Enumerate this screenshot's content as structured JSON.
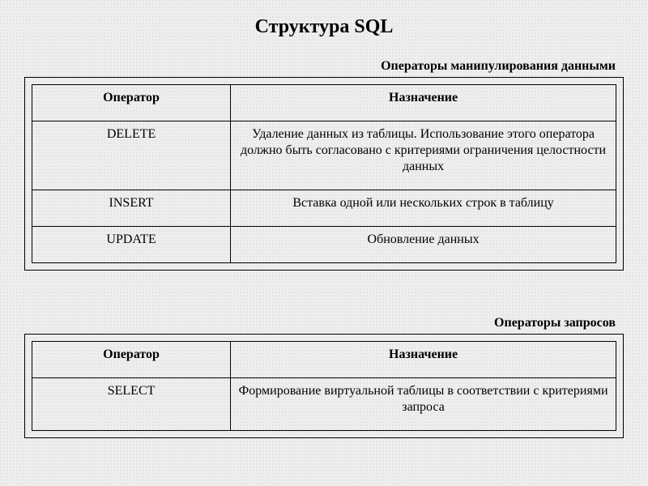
{
  "title": "Структура SQL",
  "section1": {
    "caption": "Операторы манипулирования данными",
    "table": {
      "columns": [
        "Оператор",
        "Назначение"
      ],
      "rows": [
        [
          "DELETE",
          "Удаление данных из таблицы. Использование этого оператора должно быть согласовано с критериями ограничения целостности данных"
        ],
        [
          "INSERT",
          "Вставка одной или нескольких строк в таблицу"
        ],
        [
          "UPDATE",
          "Обновление данных"
        ]
      ],
      "col_widths": [
        0.34,
        0.66
      ],
      "border_color": "#000000",
      "header_fontweight": "bold",
      "cell_align": "center",
      "font_family": "Times New Roman",
      "font_size_pt": 12
    }
  },
  "section2": {
    "caption": "Операторы запросов",
    "table": {
      "columns": [
        "Оператор",
        "Назначение"
      ],
      "rows": [
        [
          "SELECT",
          "Формирование виртуальной таблицы в соответствии с критериями запроса"
        ]
      ],
      "col_widths": [
        0.34,
        0.66
      ],
      "border_color": "#000000",
      "header_fontweight": "bold",
      "cell_align": "center",
      "font_family": "Times New Roman",
      "font_size_pt": 12
    }
  },
  "background_color": "#eeeeee"
}
